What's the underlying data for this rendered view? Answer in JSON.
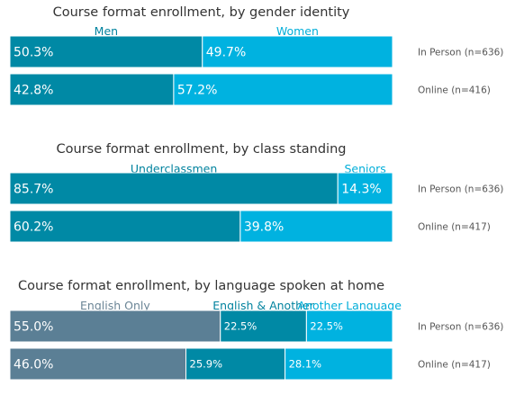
{
  "colors": {
    "seg_dark": "#0089a5",
    "seg_light": "#00b2e0",
    "seg_slate": "#5b7f95",
    "text_dark": "#333333",
    "text_row": "#555555",
    "label_slate": "#6b8596",
    "label_dark": "#00829e",
    "label_light": "#00aed9",
    "bar_text": "#ffffff"
  },
  "chart_data": [
    {
      "type": "bar",
      "orientation": "horizontal",
      "stacked": true,
      "normalized_percent": true,
      "title": "Course format enrollment, by gender identity",
      "categories": [
        "In Person (n=636)",
        "Online (n=416)"
      ],
      "series": [
        {
          "name": "Men",
          "values": [
            50.3,
            42.8
          ],
          "labels": [
            "50.3%",
            "42.8%"
          ],
          "color": "#0089a5",
          "label_color": "#00829e"
        },
        {
          "name": "Women",
          "values": [
            49.7,
            57.2
          ],
          "labels": [
            "49.7%",
            "57.2%"
          ],
          "color": "#00b2e0",
          "label_color": "#00aed9"
        }
      ]
    },
    {
      "type": "bar",
      "orientation": "horizontal",
      "stacked": true,
      "normalized_percent": true,
      "title": "Course format enrollment, by class standing",
      "categories": [
        "In Person (n=636)",
        "Online (n=417)"
      ],
      "series": [
        {
          "name": "Underclassmen",
          "values": [
            85.7,
            60.2
          ],
          "labels": [
            "85.7%",
            "60.2%"
          ],
          "color": "#0089a5",
          "label_color": "#00829e"
        },
        {
          "name": "Seniors",
          "values": [
            14.3,
            39.8
          ],
          "labels": [
            "14.3%",
            "39.8%"
          ],
          "color": "#00b2e0",
          "label_color": "#00aed9"
        }
      ]
    },
    {
      "type": "bar",
      "orientation": "horizontal",
      "stacked": true,
      "normalized_percent": true,
      "title": "Course format enrollment, by language spoken at home",
      "categories": [
        "In Person (n=636)",
        "Online (n=417)"
      ],
      "series": [
        {
          "name": "English Only",
          "values": [
            55.0,
            46.0
          ],
          "labels": [
            "55.0%",
            "46.0%"
          ],
          "color": "#5b7f95",
          "label_color": "#6b8596"
        },
        {
          "name": "English & Another",
          "values": [
            22.5,
            25.9
          ],
          "labels": [
            "22.5%",
            "25.9%"
          ],
          "color": "#0089a5",
          "label_color": "#00829e"
        },
        {
          "name": "Another Language",
          "values": [
            22.5,
            28.1
          ],
          "labels": [
            "22.5%",
            "28.1%"
          ],
          "color": "#00b2e0",
          "label_color": "#00aed9"
        }
      ]
    }
  ]
}
